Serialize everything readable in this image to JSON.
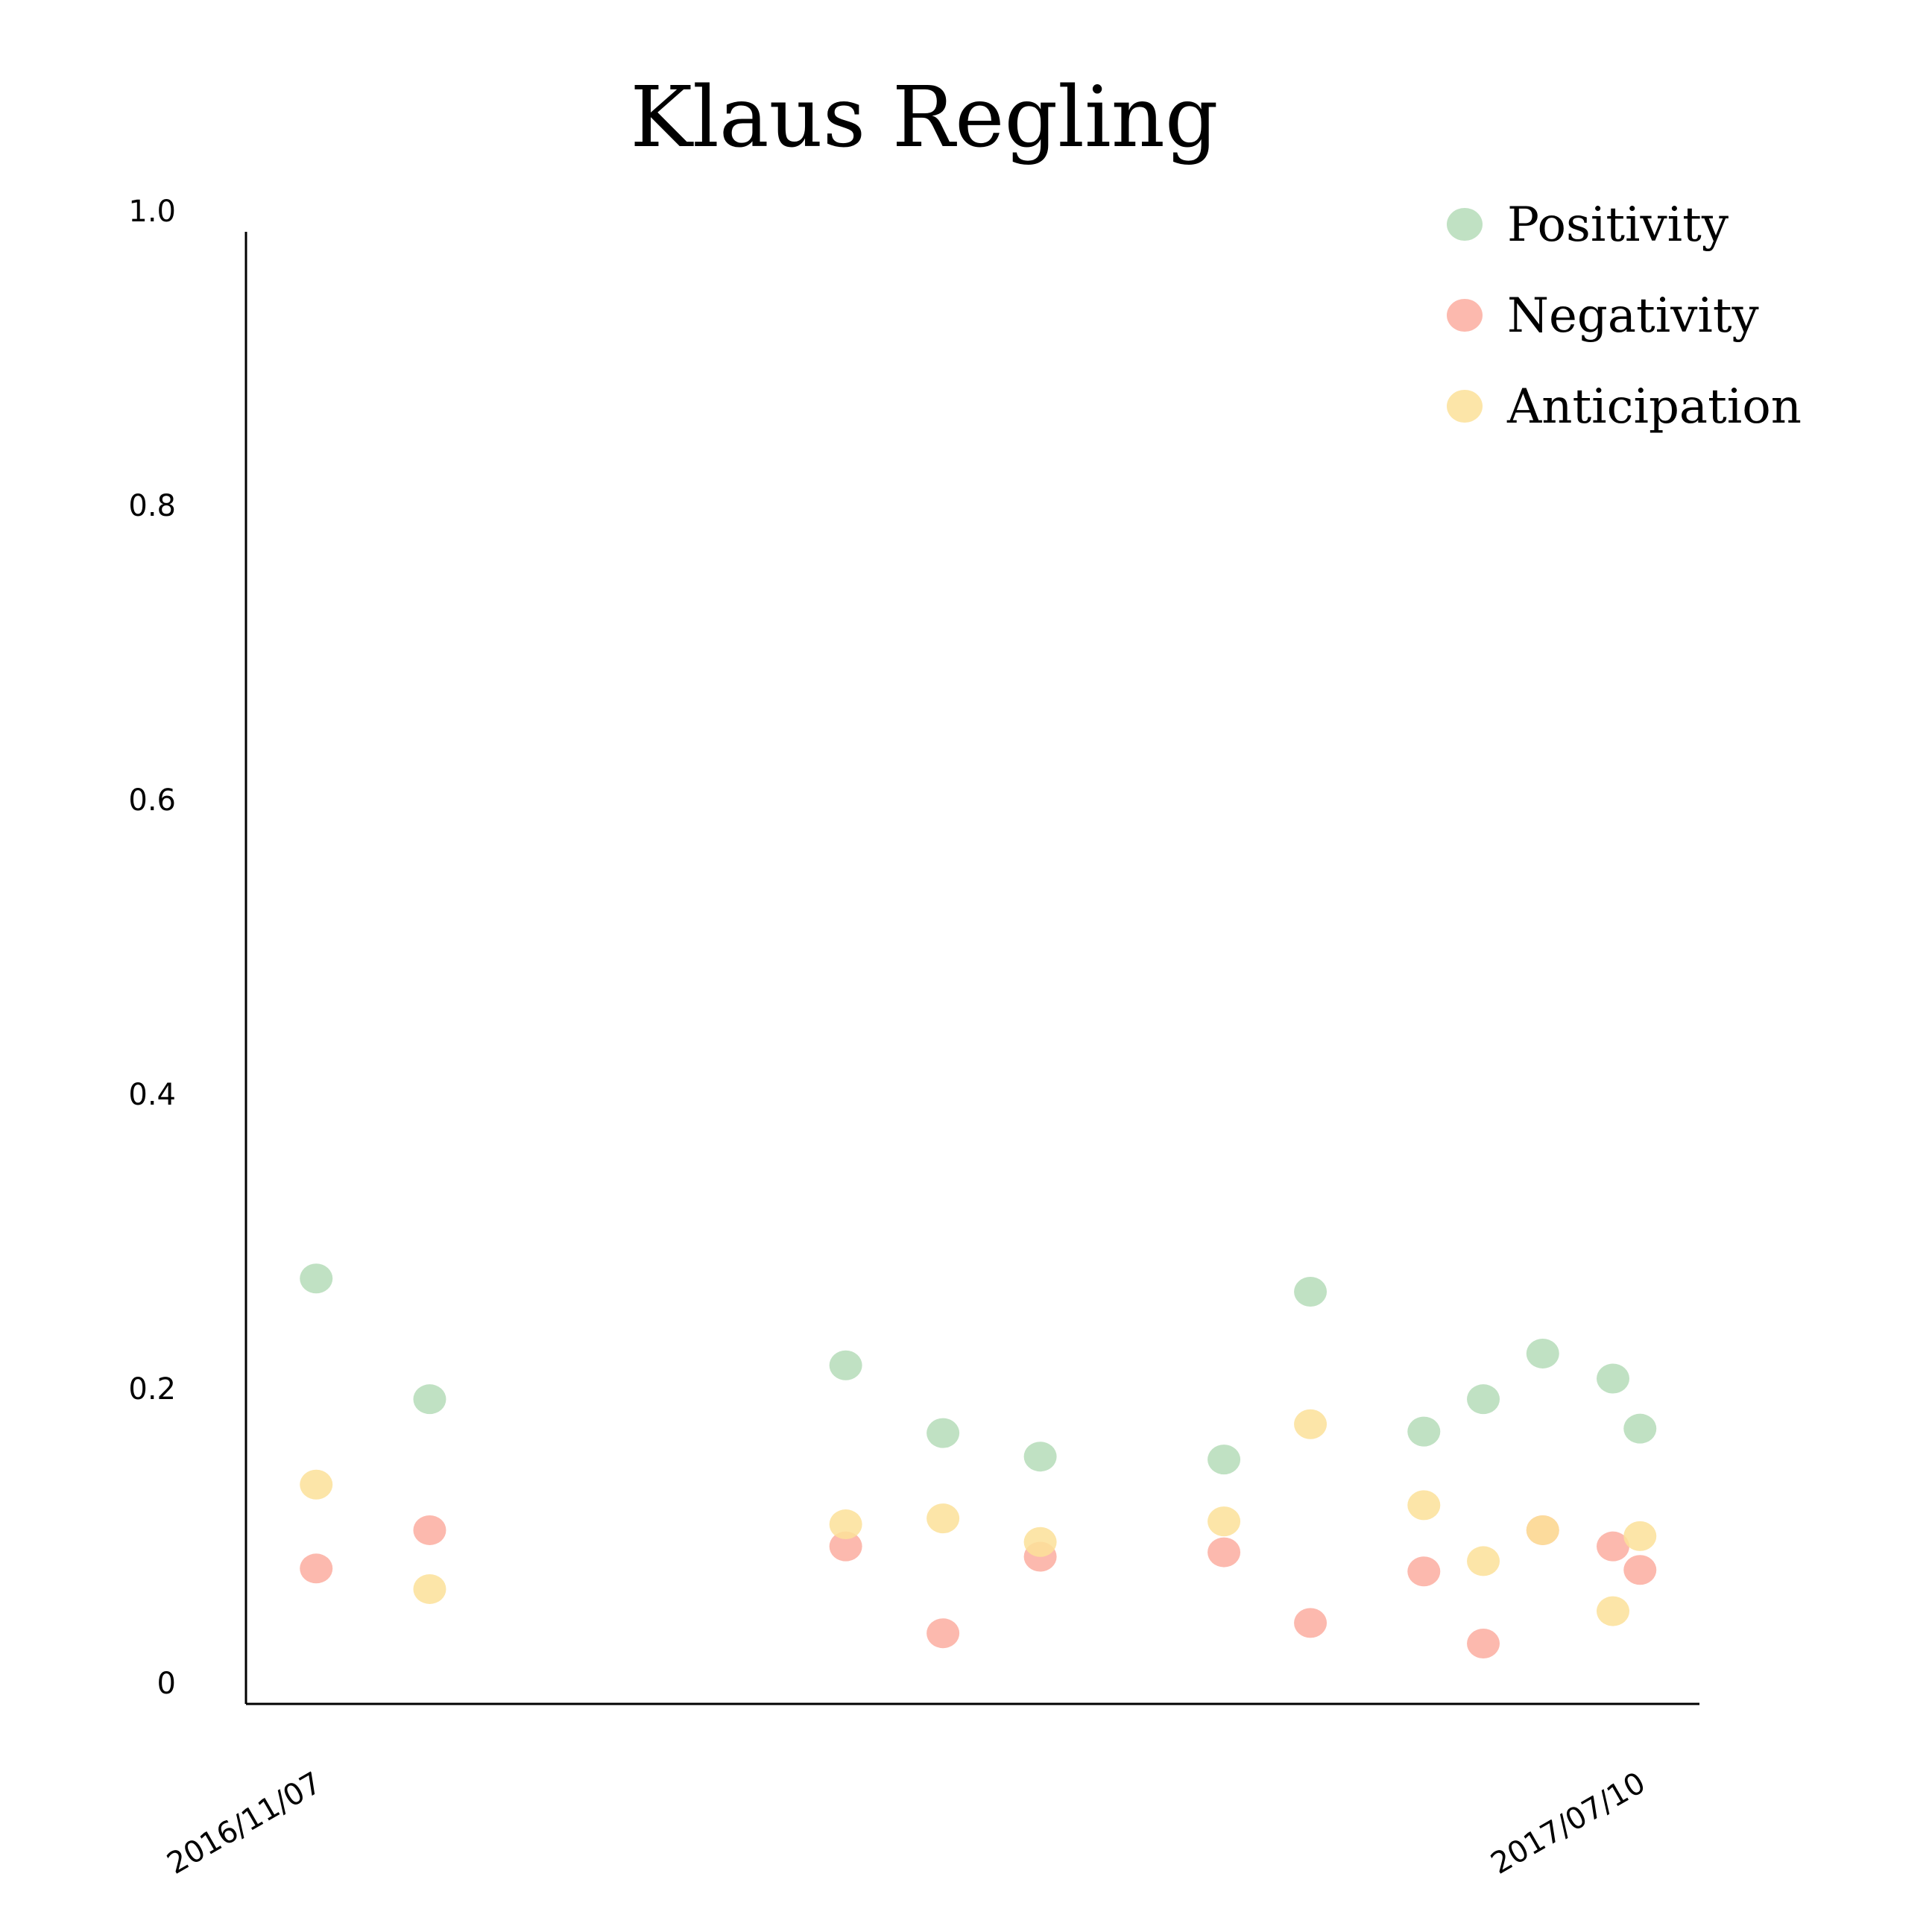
{
  "chart_data": {
    "type": "scatter",
    "title": "Klaus Regling",
    "xlabel": "",
    "ylabel": "",
    "ylim": [
      0,
      1.0
    ],
    "y_ticks": [
      {
        "value": 0,
        "label": "0"
      },
      {
        "value": 0.2,
        "label": "0.2"
      },
      {
        "value": 0.4,
        "label": "0.4"
      },
      {
        "value": 0.6,
        "label": "0.6"
      },
      {
        "value": 0.8,
        "label": "0.8"
      },
      {
        "value": 1.0,
        "label": "1.0"
      }
    ],
    "xlim": [
      "2016-10-25",
      "2017-07-21"
    ],
    "x_ticks": [
      {
        "value": "2016-11-07",
        "label": "2016/11/07"
      },
      {
        "value": "2017-07-10",
        "label": "2017/07/10"
      }
    ],
    "x": [
      "2016-11-07",
      "2016-11-28",
      "2017-02-13",
      "2017-03-03",
      "2017-03-21",
      "2017-04-24",
      "2017-05-10",
      "2017-05-31",
      "2017-06-11",
      "2017-06-22",
      "2017-07-05",
      "2017-07-10"
    ],
    "series": [
      {
        "name": "Positivity",
        "color": "#b5dcb9",
        "values": [
          0.289,
          0.207,
          0.23,
          0.184,
          0.168,
          0.166,
          0.28,
          0.185,
          0.207,
          0.238,
          0.221,
          0.187
        ]
      },
      {
        "name": "Negativity",
        "color": "#fbada0",
        "values": [
          0.092,
          0.118,
          0.107,
          0.048,
          0.1,
          0.103,
          0.055,
          0.09,
          0.041,
          0.118,
          0.107,
          0.091
        ]
      },
      {
        "name": "Anticipation",
        "color": "#fbe099",
        "values": [
          0.149,
          0.078,
          0.122,
          0.126,
          0.11,
          0.124,
          0.19,
          0.135,
          0.097,
          0.118,
          0.063,
          0.114
        ]
      }
    ],
    "grid": false,
    "legend": "top-right"
  }
}
